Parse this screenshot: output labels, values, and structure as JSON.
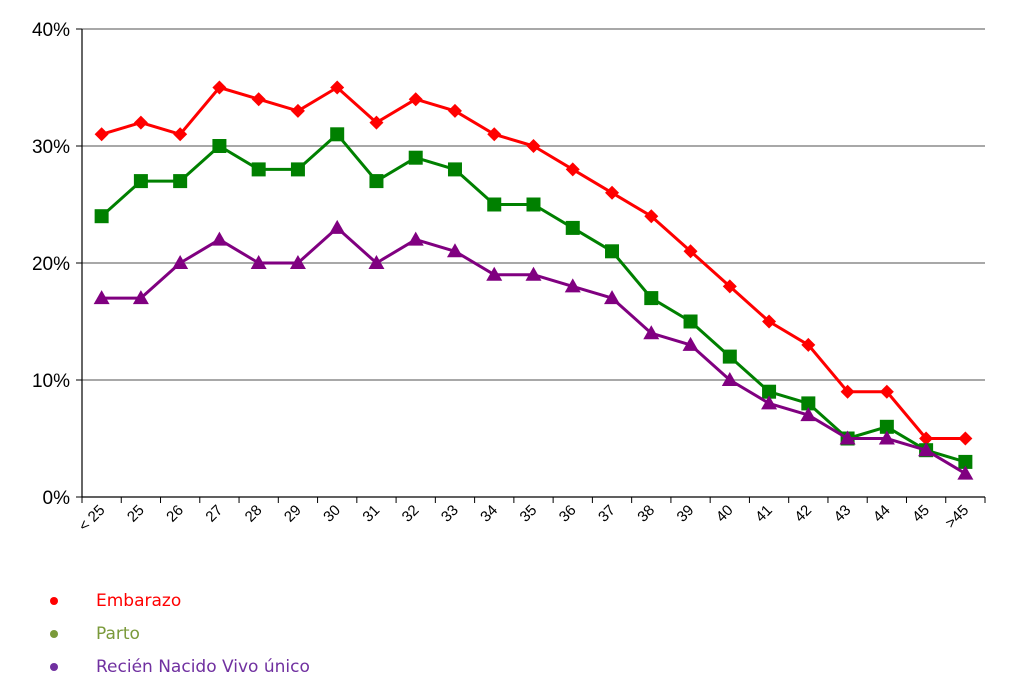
{
  "chart_data": {
    "type": "line",
    "categories": [
      "< 25",
      "25",
      "26",
      "27",
      "28",
      "29",
      "30",
      "31",
      "32",
      "33",
      "34",
      "35",
      "36",
      "37",
      "38",
      "39",
      "40",
      "41",
      "42",
      "43",
      "44",
      "45",
      ">45"
    ],
    "series": [
      {
        "name": "Embarazo",
        "color": "#ff0000",
        "marker": "diamond",
        "values": [
          31,
          32,
          31,
          35,
          34,
          33,
          35,
          32,
          34,
          33,
          31,
          30,
          28,
          26,
          24,
          21,
          18,
          15,
          13,
          9,
          9,
          5,
          5
        ]
      },
      {
        "name": "Parto",
        "color": "#008000",
        "marker": "square",
        "values": [
          24,
          27,
          27,
          30,
          28,
          28,
          31,
          27,
          29,
          28,
          25,
          25,
          23,
          21,
          17,
          15,
          12,
          9,
          8,
          5,
          6,
          4,
          3
        ]
      },
      {
        "name": "Recién Nacido Vivo único",
        "color": "#800080",
        "marker": "triangle",
        "values": [
          17,
          17,
          20,
          22,
          20,
          20,
          23,
          20,
          22,
          21,
          19,
          19,
          18,
          17,
          14,
          13,
          10,
          8,
          7,
          5,
          5,
          4,
          2
        ]
      }
    ],
    "ylim": [
      0,
      40
    ],
    "yticks": [
      0,
      10,
      20,
      30,
      40
    ],
    "ytick_labels": [
      "0%",
      "10%",
      "20%",
      "30%",
      "40%"
    ],
    "grid": true,
    "legend_position": "bottom-left",
    "title": "",
    "xlabel": "",
    "ylabel": ""
  },
  "legend": [
    {
      "label": "Embarazo",
      "color": "#ff0000"
    },
    {
      "label": "Parto",
      "color": "#7a9a3a"
    },
    {
      "label": "Recién Nacido Vivo único",
      "color": "#7030a0"
    }
  ]
}
